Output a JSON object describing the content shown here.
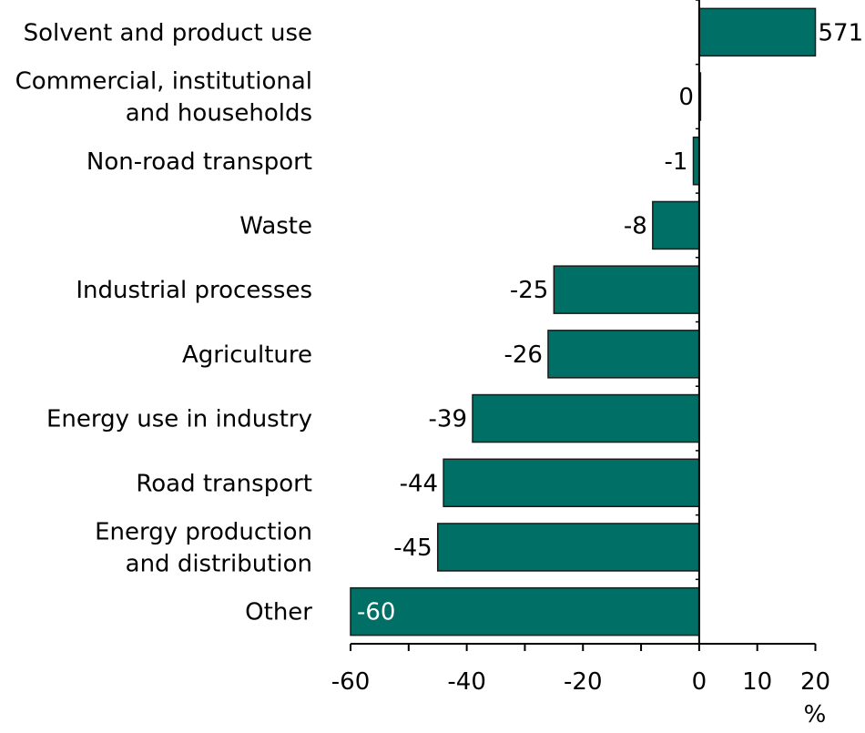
{
  "chart_data": {
    "type": "bar",
    "orientation": "horizontal",
    "categories": [
      [
        "Solvent and product use"
      ],
      [
        "Commercial, institutional",
        "and households"
      ],
      [
        "Non-road transport"
      ],
      [
        "Waste"
      ],
      [
        "Industrial processes"
      ],
      [
        "Agriculture"
      ],
      [
        "Energy use in industry"
      ],
      [
        "Road transport"
      ],
      [
        "Energy production",
        "and distribution"
      ],
      [
        "Other"
      ]
    ],
    "values": [
      571,
      0,
      -1,
      -8,
      -25,
      -26,
      -39,
      -44,
      -45,
      -60
    ],
    "value_labels": [
      "571",
      "0",
      "-1",
      "-8",
      "-25",
      "-26",
      "-39",
      "-44",
      "-45",
      "-60"
    ],
    "xlim": [
      -60,
      20
    ],
    "xticks": [
      -60,
      -50,
      -40,
      -30,
      -20,
      -10,
      0,
      10,
      20
    ],
    "xtick_labels": [
      {
        "value": -60,
        "label": "-60"
      },
      {
        "value": -40,
        "label": "-40"
      },
      {
        "value": -20,
        "label": "-20"
      },
      {
        "value": 0,
        "label": "0"
      },
      {
        "value": 10,
        "label": "10"
      },
      {
        "value": 20,
        "label": "20"
      }
    ],
    "xlabel": "%",
    "grid": false,
    "bar_color": "#006f66",
    "note": ""
  }
}
